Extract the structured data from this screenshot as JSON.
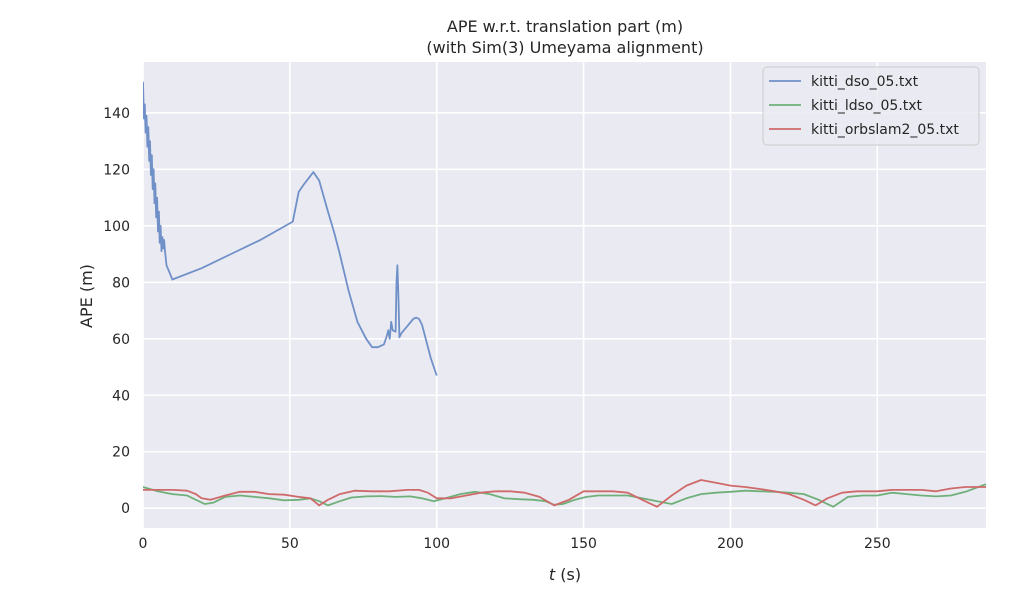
{
  "chart_data": {
    "type": "line",
    "title": "APE w.r.t. translation part (m)",
    "subtitle": "(with Sim(3) Umeyama alignment)",
    "xlabel_var": "t",
    "xlabel_unit": " (s)",
    "ylabel": "APE (m)",
    "xlim": [
      0,
      287
    ],
    "ylim": [
      -7,
      158
    ],
    "xticks": [
      0,
      50,
      100,
      150,
      200,
      250
    ],
    "yticks": [
      0,
      20,
      40,
      60,
      80,
      100,
      120,
      140
    ],
    "grid": true,
    "legend_position": "top-right",
    "series": [
      {
        "name": "kitti_dso_05.txt",
        "color": "#7090c8",
        "x": [
          0,
          0.3,
          0.6,
          0.9,
          1.2,
          1.5,
          1.8,
          2.1,
          2.4,
          2.7,
          3.0,
          3.3,
          3.6,
          3.9,
          4.2,
          4.5,
          4.8,
          5.1,
          5.4,
          5.7,
          6.0,
          6.3,
          6.6,
          6.9,
          7.2,
          7.5,
          8,
          10,
          20,
          30,
          40,
          51,
          53,
          55,
          58,
          60,
          63,
          65,
          67,
          70,
          73,
          76,
          78,
          80,
          82,
          83,
          83.5,
          84,
          84.5,
          85,
          86,
          86.3,
          86.6,
          87,
          87.3,
          88,
          90,
          92,
          93,
          94,
          95,
          96,
          97,
          98,
          100
        ],
        "values": [
          151,
          138,
          143,
          133,
          139,
          128,
          135,
          123,
          130,
          118,
          125,
          113,
          120,
          108,
          115,
          103,
          110,
          98,
          105,
          94,
          100,
          91,
          96,
          92,
          95,
          91,
          86,
          81,
          85,
          90,
          95,
          101.5,
          112,
          115,
          119,
          116,
          105,
          98,
          90,
          77,
          66,
          60,
          57,
          57,
          58,
          61,
          63,
          60,
          66,
          63,
          62.5,
          80,
          86,
          74,
          60.5,
          62,
          64.5,
          67,
          67.5,
          67,
          65,
          61,
          57,
          53,
          47
        ]
      },
      {
        "name": "kitti_ldso_05.txt",
        "color": "#6fb07a",
        "x": [
          0,
          5,
          10,
          15,
          18,
          21,
          24,
          28,
          33,
          38,
          43,
          48,
          53,
          57,
          60,
          63,
          67,
          71,
          76,
          81,
          86,
          91,
          95,
          99,
          103,
          108,
          113,
          118,
          123,
          128,
          133,
          137,
          140,
          143,
          147,
          151,
          155,
          160,
          165,
          170,
          175,
          180,
          185,
          190,
          195,
          200,
          205,
          210,
          215,
          220,
          225,
          230,
          235,
          240,
          245,
          250,
          255,
          260,
          265,
          270,
          275,
          280,
          287
        ],
        "values": [
          7.5,
          6,
          5,
          4.5,
          3,
          1.5,
          2,
          4,
          4.5,
          4,
          3.5,
          2.8,
          3,
          3.5,
          2.5,
          1,
          2.5,
          3.8,
          4.2,
          4.3,
          4,
          4.2,
          3.5,
          2.5,
          3.5,
          5,
          5.8,
          5,
          3.5,
          3.2,
          3,
          2.5,
          1.2,
          1.5,
          3,
          4,
          4.5,
          4.5,
          4.5,
          3.5,
          2.5,
          1.5,
          3.5,
          5,
          5.5,
          5.8,
          6.2,
          6,
          5.8,
          5.5,
          5,
          3,
          0.5,
          4,
          4.5,
          4.5,
          5.5,
          5,
          4.5,
          4.2,
          4.5,
          5.8,
          8.5
        ]
      },
      {
        "name": "kitti_orbslam2_05.txt",
        "color": "#cf6a6a",
        "x": [
          0,
          10,
          15,
          18,
          20,
          23,
          28,
          33,
          38,
          43,
          48,
          53,
          57,
          60,
          63,
          67,
          72,
          78,
          84,
          90,
          94,
          97,
          100,
          105,
          110,
          115,
          120,
          125,
          130,
          135,
          140,
          145,
          150,
          155,
          160,
          165,
          170,
          175,
          180,
          185,
          190,
          195,
          200,
          205,
          210,
          215,
          220,
          225,
          229,
          233,
          238,
          243,
          250,
          255,
          260,
          265,
          270,
          275,
          280,
          287
        ],
        "values": [
          6.5,
          6.5,
          6.2,
          5,
          3.5,
          3,
          4.5,
          5.8,
          5.8,
          5,
          4.8,
          4,
          3.5,
          1,
          3,
          5,
          6.2,
          6,
          6,
          6.5,
          6.5,
          5.5,
          3.5,
          3.5,
          4.5,
          5.5,
          6,
          6,
          5.5,
          4,
          1,
          3,
          6,
          6,
          6,
          5.5,
          3,
          0.5,
          4.5,
          8,
          10,
          9,
          8,
          7.5,
          6.8,
          6,
          5,
          3,
          1,
          3.5,
          5.5,
          6,
          6,
          6.5,
          6.5,
          6.5,
          6,
          7,
          7.5,
          7.5
        ]
      }
    ]
  }
}
